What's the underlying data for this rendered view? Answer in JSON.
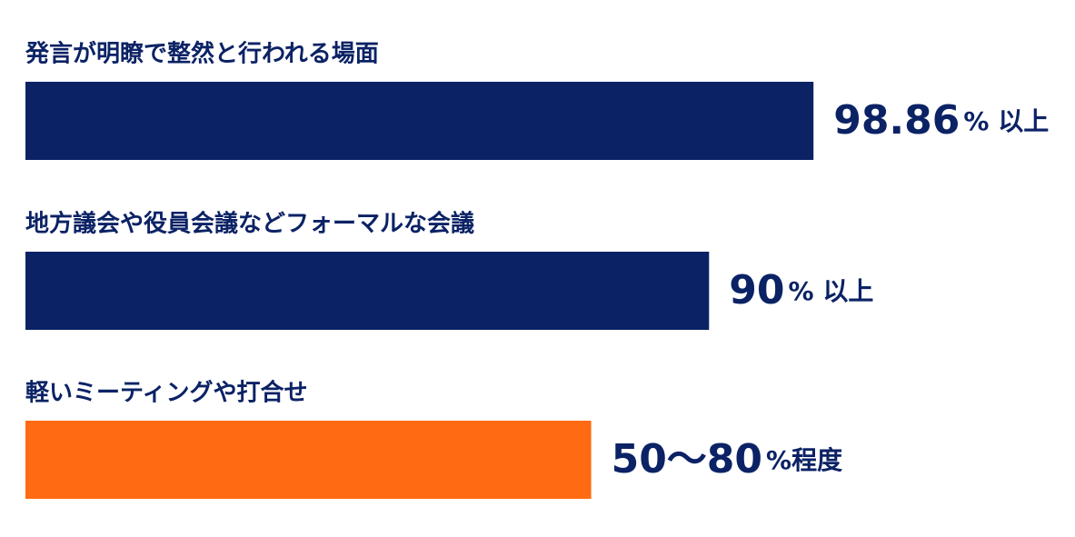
{
  "chart_data": {
    "type": "hbar",
    "categories": [
      "発言が明瞭で整然と行われる場面",
      "地方議会や役員会議などフォーマルな会議",
      "軽いミーティングや打合せ"
    ],
    "values": [
      98.86,
      90,
      80
    ],
    "value_labels": [
      "98.86",
      "90",
      "50〜80"
    ],
    "value_suffixes": [
      "% 以上",
      "% 以上",
      "%程度"
    ],
    "colors": [
      "#0b2265",
      "#0b2265",
      "#ff6a13"
    ],
    "xlim": [
      32,
      100
    ]
  }
}
